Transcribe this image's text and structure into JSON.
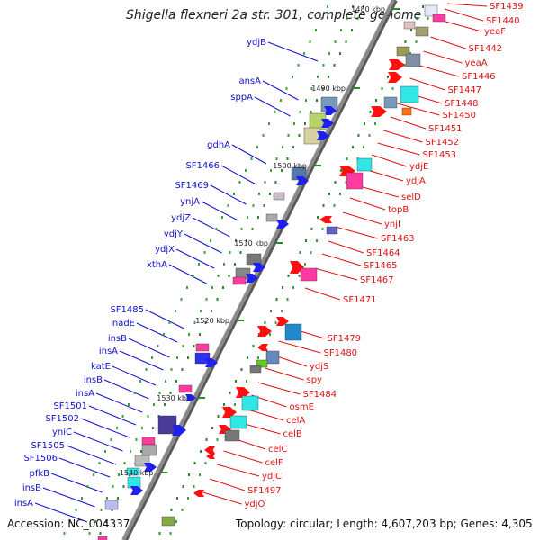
{
  "title": "Shigella flexneri 2a str. 301, complete genome",
  "footer": {
    "accession": "Accession: NC_004337",
    "topology": "Topology: circular; Length: 4,607,203 bp; Genes: 4,305"
  },
  "ticks": [
    "1480 kbp",
    "1490 kbp",
    "1500 kbp",
    "1510 kbp",
    "1520 kbp",
    "1530 kbp",
    "1540 kbp"
  ],
  "colors": {
    "left_labels": "#1111cc",
    "right_labels": "#dd1111",
    "backbone": "#8c8c8c"
  },
  "left_genes": [
    "ydjB",
    "ansA",
    "sppA",
    "gdhA",
    "SF1466",
    "SF1469",
    "ynjA",
    "ydjZ",
    "ydjY",
    "ydjX",
    "xthA",
    "SF1485",
    "nadE",
    "insB",
    "insA",
    "katE",
    "insB",
    "insA",
    "SF1501",
    "SF1502",
    "yniC",
    "SF1505",
    "SF1506",
    "pfkB",
    "insB",
    "insA"
  ],
  "right_genes": [
    "SF1439",
    "SF1440",
    "yeaF",
    "SF1442",
    "yeaA",
    "SF1446",
    "SF1447",
    "SF1448",
    "SF1450",
    "SF1451",
    "SF1452",
    "SF1453",
    "ydjE",
    "ydjA",
    "selD",
    "topB",
    "ynjI",
    "SF1463",
    "SF1464",
    "SF1465",
    "SF1467",
    "SF1471",
    "SF1479",
    "SF1480",
    "ydjS",
    "spy",
    "SF1484",
    "osmE",
    "celA",
    "celB",
    "celC",
    "celF",
    "ydjC",
    "SF1497",
    "ydjO"
  ]
}
